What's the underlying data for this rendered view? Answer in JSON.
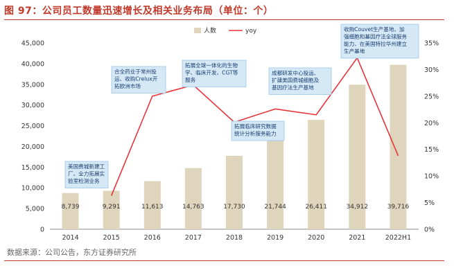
{
  "title": "图 97：公司员工数量迅速增长及相关业务布局（单位：个）",
  "source": "数据来源：公司公告，东方证券研究所",
  "colors": {
    "bar": "#dfd4bc",
    "line": "#e8343a",
    "note_fill": "#d5e8f6",
    "note_stroke": "#9cc6e8",
    "accent": "#c0392b"
  },
  "chart_data": {
    "type": "bar+line",
    "categories": [
      "2014",
      "2015",
      "2016",
      "2017",
      "2018",
      "2019",
      "2020",
      "2021",
      "2022H1"
    ],
    "series": [
      {
        "name": "人数",
        "type": "bar",
        "axis": "left",
        "values": [
          8739,
          9291,
          11613,
          14763,
          17730,
          21744,
          26411,
          34912,
          39716
        ]
      },
      {
        "name": "yoy",
        "type": "line",
        "axis": "right",
        "values": [
          null,
          6.3,
          25.0,
          27.1,
          20.1,
          22.6,
          21.5,
          32.2,
          13.8
        ]
      }
    ],
    "value_labels": [
      "8,739",
      "9,291",
      "11,613",
      "14,763",
      "17,730",
      "21,744",
      "26,411",
      "34,912",
      "39,716"
    ],
    "y_left": {
      "min": 0,
      "max": 45000,
      "ticks": [
        "0",
        "5,000",
        "10,000",
        "15,000",
        "20,000",
        "25,000",
        "30,000",
        "35,000",
        "40,000",
        "45,000"
      ]
    },
    "y_right": {
      "min": 0,
      "max": 35,
      "ticks": [
        "0%",
        "5%",
        "10%",
        "15%",
        "20%",
        "25%",
        "30%",
        "35%"
      ]
    },
    "legend": {
      "position": "top-center",
      "items": [
        "人数",
        "yoy"
      ]
    },
    "annotations": [
      {
        "point": "2015",
        "lines": [
          "美国费城新建工",
          "厂、全力拓展实",
          "验室检测业务"
        ]
      },
      {
        "point": "2016",
        "lines": [
          "合全药业于常州投",
          "运、收购Crelux开",
          "拓欧洲市场"
        ]
      },
      {
        "point": "2017",
        "lines": [
          "拓展全球一体化的生物",
          "学、临床开发、CGT等",
          "服务"
        ]
      },
      {
        "point": "2018",
        "lines": [
          "拓展临床研究数据",
          "统计分析服务能力"
        ]
      },
      {
        "point": "2019",
        "lines": [
          "成都研发中心投运、",
          "扩建美国费城细胞及",
          "基因疗法生产基地"
        ]
      },
      {
        "point": "2021",
        "lines": [
          "收购Couvet生产基地、加",
          "强细胞和基因疗法全球服务",
          "能力、在美国特拉华州建立",
          "生产基地"
        ]
      }
    ]
  }
}
